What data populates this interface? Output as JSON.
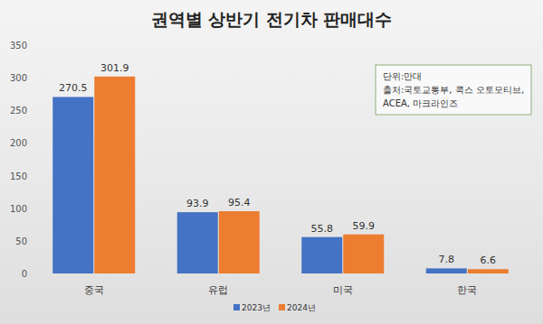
{
  "chart_data": {
    "type": "bar",
    "title": "권역별 상반기 전기차 판매대수",
    "annotations": [
      "단위:만대",
      "출처:국토교통부, 콕스 오토모티브,",
      "ACEA, 마크라인즈"
    ],
    "categories": [
      "중국",
      "유럽",
      "미국",
      "한국"
    ],
    "series": [
      {
        "name": "2023년",
        "color": "#4472c4",
        "values": [
          270.5,
          93.9,
          55.8,
          7.8
        ]
      },
      {
        "name": "2024년",
        "color": "#ed7d31",
        "values": [
          301.9,
          95.4,
          59.9,
          6.6
        ]
      }
    ],
    "ylim": [
      0,
      350
    ],
    "yticks": [
      0,
      50,
      100,
      150,
      200,
      250,
      300,
      350
    ],
    "grid": false,
    "data_labels": true,
    "legend": "bottom"
  }
}
